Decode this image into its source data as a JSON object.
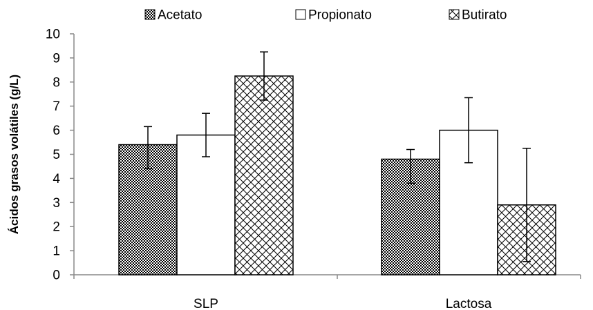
{
  "chart_data": {
    "type": "bar",
    "title": "",
    "xlabel": "",
    "ylabel": "Ácidos grasos volátiles (g/L)",
    "categories": [
      "SLP",
      "Lactosa"
    ],
    "ylim": [
      0,
      10
    ],
    "yticks": [
      0,
      1,
      2,
      3,
      4,
      5,
      6,
      7,
      8,
      9,
      10
    ],
    "grid": false,
    "legend_position": "top",
    "series": [
      {
        "name": "Acetato",
        "pattern": "fine-checker",
        "values": [
          5.4,
          4.8
        ],
        "error": [
          {
            "low": 4.4,
            "high": 6.15
          },
          {
            "low": 3.8,
            "high": 5.2
          }
        ]
      },
      {
        "name": "Propionato",
        "pattern": "none",
        "values": [
          5.8,
          6.0
        ],
        "error": [
          {
            "low": 4.9,
            "high": 6.7
          },
          {
            "low": 4.65,
            "high": 7.35
          }
        ]
      },
      {
        "name": "Butirato",
        "pattern": "crosshatch",
        "values": [
          8.25,
          2.9
        ],
        "error": [
          {
            "low": 7.25,
            "high": 9.25
          },
          {
            "low": 0.55,
            "high": 5.25
          }
        ]
      }
    ],
    "colors": {
      "axis": "#888888",
      "bar_stroke": "#000000",
      "bar_fill": "#ffffff",
      "pattern_ink": "#000000"
    }
  }
}
